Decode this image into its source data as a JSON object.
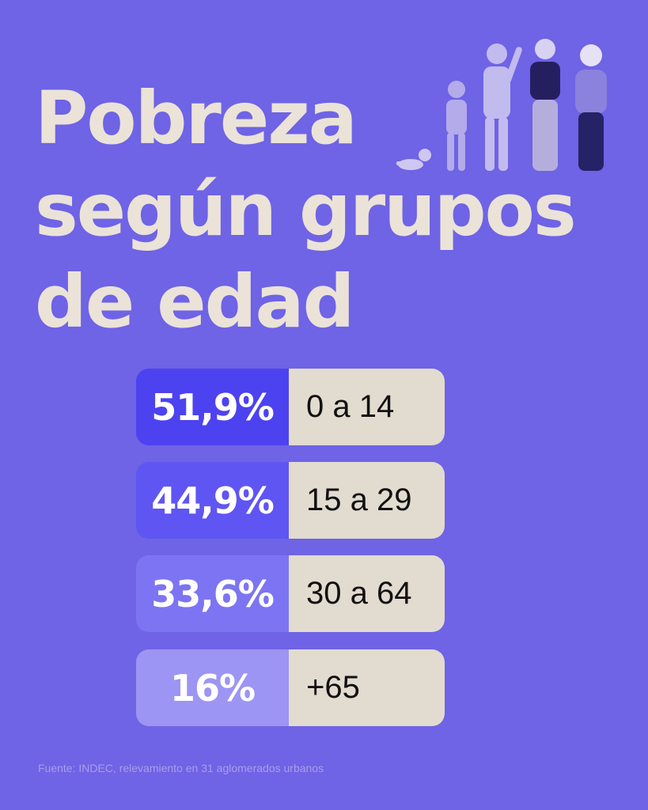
{
  "title_lines": [
    "Pobreza",
    "según grupos",
    "de edad"
  ],
  "chart_data": {
    "type": "table",
    "rows": [
      {
        "value_label": "51,9%",
        "value": 51.9,
        "age": "0 a 14",
        "color": "#4d42f0"
      },
      {
        "value_label": "44,9%",
        "value": 44.9,
        "age": "15 a 29",
        "color": "#5f55f2"
      },
      {
        "value_label": "33,6%",
        "value": 33.6,
        "age": "30 a 64",
        "color": "#7d74f3"
      },
      {
        "value_label": "16%",
        "value": 16,
        "age": "+65",
        "color": "#9c95f3"
      }
    ]
  },
  "source": "Fuente: INDEC, relevamiento en 31 aglomerados urbanos",
  "colors": {
    "background": "#6f63e6",
    "title": "#ebe3d8",
    "age_box": "#e2dbcf"
  }
}
